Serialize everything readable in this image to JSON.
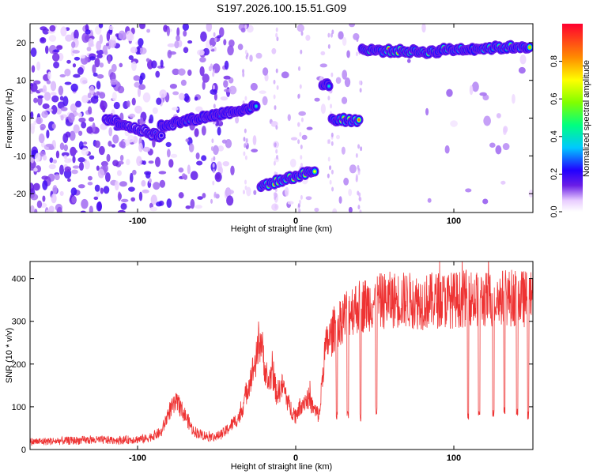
{
  "title": "S197.2026.100.15.51.G09",
  "chart_data": [
    {
      "type": "heatmap",
      "xlabel": "Height of straight line (km)",
      "ylabel": "Frequency (Hz)",
      "xlim": [
        -168,
        150
      ],
      "ylim": [
        -25,
        25
      ],
      "xticks": [
        -100,
        0,
        100
      ],
      "xtick_labels": [
        "-100",
        "0",
        "100"
      ],
      "yticks": [
        -20,
        -10,
        0,
        10,
        20
      ],
      "ytick_labels": [
        "-20",
        "-10",
        "0",
        "10",
        "20"
      ],
      "colorbar": {
        "label": "Normalized spectral amplitude",
        "range": [
          0,
          1
        ],
        "ticks": [
          0,
          0.2,
          0.4,
          0.6,
          0.8
        ],
        "tick_labels": [
          "0.0",
          "0.2",
          "0.4",
          "0.6",
          "0.8"
        ]
      },
      "ridge_segments": [
        {
          "x_start": -120,
          "x_end": -85,
          "freq_start": 0,
          "freq_end": -5,
          "peak_amplitude": 0.3
        },
        {
          "x_start": -85,
          "x_end": -25,
          "freq_start": -2,
          "freq_end": 3,
          "peak_amplitude": 0.45
        },
        {
          "x_start": -22,
          "x_end": 12,
          "freq_start": -18,
          "freq_end": -14,
          "peak_amplitude": 0.95
        },
        {
          "x_start": 17,
          "x_end": 21,
          "freq_start": 9,
          "freq_end": 9,
          "peak_amplitude": 0.5
        },
        {
          "x_start": 23,
          "x_end": 40,
          "freq_start": -0.5,
          "freq_end": -0.5,
          "peak_amplitude": 0.95
        },
        {
          "x_start": 42,
          "x_end": 90,
          "freq_start": 18,
          "freq_end": 17.5,
          "peak_amplitude": 1.0
        },
        {
          "x_start": 90,
          "x_end": 148,
          "freq_start": 18,
          "freq_end": 19,
          "peak_amplitude": 0.9
        }
      ]
    },
    {
      "type": "line",
      "xlabel": "Height of straight line (km)",
      "ylabel": "SNR (10 * v/v)",
      "xlim": [
        -168,
        150
      ],
      "ylim": [
        0,
        440
      ],
      "xticks": [
        -100,
        0,
        100
      ],
      "xtick_labels": [
        "-100",
        "0",
        "100"
      ],
      "yticks": [
        0,
        100,
        200,
        300,
        400
      ],
      "ytick_labels": [
        "0",
        "100",
        "200",
        "300",
        "400"
      ],
      "series": [
        {
          "name": "SNR",
          "color": "#ee3333",
          "x": [
            -168,
            -150,
            -130,
            -110,
            -95,
            -85,
            -80,
            -75,
            -70,
            -65,
            -60,
            -55,
            -50,
            -45,
            -40,
            -35,
            -30,
            -25,
            -22,
            -18,
            -15,
            -12,
            -8,
            -4,
            0,
            4,
            8,
            12,
            15,
            18,
            20,
            23,
            25,
            28,
            32,
            36,
            40,
            45,
            50,
            60,
            70,
            80,
            90,
            100,
            110,
            120,
            130,
            140,
            150
          ],
          "y": [
            18,
            20,
            22,
            22,
            25,
            40,
            90,
            110,
            80,
            45,
            35,
            30,
            30,
            40,
            60,
            80,
            150,
            210,
            260,
            150,
            180,
            130,
            150,
            100,
            80,
            110,
            120,
            90,
            80,
            220,
            250,
            270,
            290,
            300,
            320,
            330,
            335,
            340,
            345,
            350,
            350,
            345,
            350,
            350,
            355,
            350,
            355,
            355,
            350
          ]
        }
      ],
      "dropouts": [
        {
          "x": 26,
          "min_y": 70
        },
        {
          "x": 33,
          "min_y": 70
        },
        {
          "x": 41,
          "min_y": 65
        },
        {
          "x": 51,
          "min_y": 80
        },
        {
          "x": 109,
          "min_y": 70
        },
        {
          "x": 116,
          "min_y": 75
        },
        {
          "x": 125,
          "min_y": 75
        },
        {
          "x": 132,
          "min_y": 80
        },
        {
          "x": 140,
          "min_y": 75
        },
        {
          "x": 147,
          "min_y": 70
        }
      ]
    }
  ]
}
